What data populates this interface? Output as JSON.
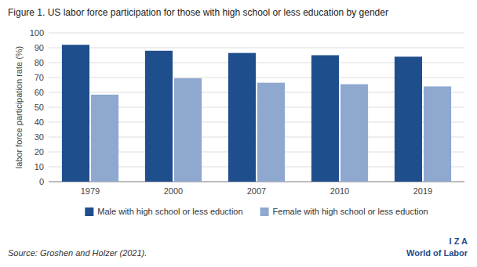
{
  "chart_data": {
    "type": "bar",
    "title": "Figure 1. US labor force participation for those with high school or less education by gender",
    "categories": [
      "1979",
      "2000",
      "2007",
      "2010",
      "2019"
    ],
    "series": [
      {
        "name": "Male with high school or less eduction",
        "color": "#1F4E8C",
        "values": [
          92,
          88,
          86.5,
          85,
          84
        ]
      },
      {
        "name": "Female with high school or less eduction",
        "color": "#8FA8D0",
        "values": [
          58.5,
          69.5,
          66.5,
          65.5,
          64
        ]
      }
    ],
    "y_label": "labor force participation rate (%)",
    "ylim": [
      0,
      100
    ],
    "yticks": [
      0,
      10,
      20,
      30,
      40,
      50,
      60,
      70,
      80,
      90,
      100
    ],
    "grid": true,
    "legend": "bottom",
    "annotations": [
      "Source: Groshen and Holzer (2021).",
      "I  Z  A",
      "World of Labor"
    ]
  }
}
